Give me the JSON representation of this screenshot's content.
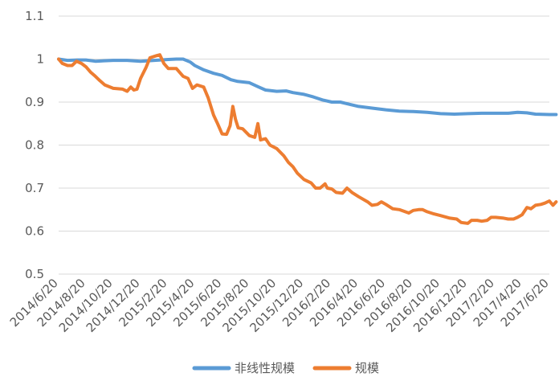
{
  "chart_data": {
    "type": "line",
    "title": "",
    "xlabel": "",
    "ylabel": "",
    "ylim": [
      0.5,
      1.1
    ],
    "yticks": [
      "0.5",
      "0.6",
      "0.7",
      "0.8",
      "0.9",
      "1",
      "1.1"
    ],
    "xticks": [
      "2014/6/20",
      "2014/8/20",
      "2014/10/20",
      "2014/12/20",
      "2015/2/20",
      "2015/4/20",
      "2015/6/20",
      "2015/8/20",
      "2015/10/20",
      "2015/12/20",
      "2016/2/20",
      "2016/4/20",
      "2016/6/20",
      "2016/8/20",
      "2016/10/20",
      "2016/12/20",
      "2017/2/20",
      "2017/4/20",
      "2017/6/20"
    ],
    "grid": true,
    "legend_position": "bottom",
    "series": [
      {
        "name": "非线性规模",
        "color": "#5B9BD5",
        "points": [
          [
            "2014/6/20",
            1.0
          ],
          [
            "2014/7/10",
            0.997
          ],
          [
            "2014/8/1",
            0.998
          ],
          [
            "2014/8/20",
            0.998
          ],
          [
            "2014/9/10",
            0.995
          ],
          [
            "2014/10/20",
            0.997
          ],
          [
            "2014/11/20",
            0.997
          ],
          [
            "2014/12/20",
            0.995
          ],
          [
            "2015/1/20",
            0.997
          ],
          [
            "2015/2/20",
            0.999
          ],
          [
            "2015/3/10",
            1.0
          ],
          [
            "2015/3/25",
            1.0
          ],
          [
            "2015/4/10",
            0.993
          ],
          [
            "2015/4/20",
            0.985
          ],
          [
            "2015/5/10",
            0.975
          ],
          [
            "2015/6/1",
            0.967
          ],
          [
            "2015/6/20",
            0.962
          ],
          [
            "2015/7/10",
            0.952
          ],
          [
            "2015/7/25",
            0.948
          ],
          [
            "2015/8/20",
            0.945
          ],
          [
            "2015/9/10",
            0.935
          ],
          [
            "2015/9/25",
            0.928
          ],
          [
            "2015/10/20",
            0.925
          ],
          [
            "2015/11/10",
            0.926
          ],
          [
            "2015/11/25",
            0.922
          ],
          [
            "2015/12/20",
            0.918
          ],
          [
            "2016/1/10",
            0.912
          ],
          [
            "2016/1/30",
            0.905
          ],
          [
            "2016/2/20",
            0.9
          ],
          [
            "2016/3/10",
            0.9
          ],
          [
            "2016/3/30",
            0.895
          ],
          [
            "2016/4/20",
            0.89
          ],
          [
            "2016/5/20",
            0.886
          ],
          [
            "2016/6/20",
            0.882
          ],
          [
            "2016/7/20",
            0.879
          ],
          [
            "2016/8/20",
            0.878
          ],
          [
            "2016/9/20",
            0.876
          ],
          [
            "2016/10/20",
            0.873
          ],
          [
            "2016/11/20",
            0.872
          ],
          [
            "2016/12/20",
            0.873
          ],
          [
            "2017/1/20",
            0.874
          ],
          [
            "2017/2/20",
            0.874
          ],
          [
            "2017/3/20",
            0.874
          ],
          [
            "2017/4/10",
            0.876
          ],
          [
            "2017/5/1",
            0.875
          ],
          [
            "2017/5/20",
            0.872
          ],
          [
            "2017/6/20",
            0.871
          ],
          [
            "2017/7/5",
            0.871
          ]
        ]
      },
      {
        "name": "规模",
        "color": "#ED7D31",
        "points": [
          [
            "2014/6/20",
            1.0
          ],
          [
            "2014/6/28",
            0.99
          ],
          [
            "2014/7/10",
            0.985
          ],
          [
            "2014/7/20",
            0.985
          ],
          [
            "2014/7/30",
            0.995
          ],
          [
            "2014/8/10",
            0.99
          ],
          [
            "2014/8/20",
            0.982
          ],
          [
            "2014/8/30",
            0.97
          ],
          [
            "2014/9/10",
            0.96
          ],
          [
            "2014/9/20",
            0.95
          ],
          [
            "2014/10/1",
            0.94
          ],
          [
            "2014/10/20",
            0.932
          ],
          [
            "2014/11/10",
            0.93
          ],
          [
            "2014/11/20",
            0.925
          ],
          [
            "2014/11/28",
            0.935
          ],
          [
            "2014/12/5",
            0.928
          ],
          [
            "2014/12/12",
            0.93
          ],
          [
            "2014/12/20",
            0.955
          ],
          [
            "2015/1/1",
            0.98
          ],
          [
            "2015/1/10",
            1.003
          ],
          [
            "2015/1/25",
            1.008
          ],
          [
            "2015/2/1",
            1.01
          ],
          [
            "2015/2/10",
            0.99
          ],
          [
            "2015/2/20",
            0.978
          ],
          [
            "2015/3/10",
            0.978
          ],
          [
            "2015/3/25",
            0.96
          ],
          [
            "2015/4/5",
            0.955
          ],
          [
            "2015/4/15",
            0.932
          ],
          [
            "2015/4/25",
            0.94
          ],
          [
            "2015/5/10",
            0.935
          ],
          [
            "2015/5/20",
            0.91
          ],
          [
            "2015/6/1",
            0.87
          ],
          [
            "2015/6/10",
            0.85
          ],
          [
            "2015/6/20",
            0.826
          ],
          [
            "2015/6/30",
            0.825
          ],
          [
            "2015/7/8",
            0.845
          ],
          [
            "2015/7/14",
            0.89
          ],
          [
            "2015/7/20",
            0.86
          ],
          [
            "2015/7/26",
            0.84
          ],
          [
            "2015/8/5",
            0.838
          ],
          [
            "2015/8/20",
            0.822
          ],
          [
            "2015/9/1",
            0.818
          ],
          [
            "2015/9/8",
            0.85
          ],
          [
            "2015/9/14",
            0.812
          ],
          [
            "2015/9/25",
            0.815
          ],
          [
            "2015/10/5",
            0.8
          ],
          [
            "2015/10/20",
            0.792
          ],
          [
            "2015/11/5",
            0.775
          ],
          [
            "2015/11/15",
            0.76
          ],
          [
            "2015/11/25",
            0.75
          ],
          [
            "2015/12/5",
            0.735
          ],
          [
            "2015/12/20",
            0.72
          ],
          [
            "2016/1/5",
            0.712
          ],
          [
            "2016/1/15",
            0.7
          ],
          [
            "2016/1/25",
            0.7
          ],
          [
            "2016/2/5",
            0.71
          ],
          [
            "2016/2/10",
            0.7
          ],
          [
            "2016/2/20",
            0.698
          ],
          [
            "2016/3/1",
            0.69
          ],
          [
            "2016/3/15",
            0.688
          ],
          [
            "2016/3/25",
            0.7
          ],
          [
            "2016/4/5",
            0.69
          ],
          [
            "2016/4/20",
            0.68
          ],
          [
            "2016/5/10",
            0.668
          ],
          [
            "2016/5/20",
            0.66
          ],
          [
            "2016/6/1",
            0.662
          ],
          [
            "2016/6/10",
            0.668
          ],
          [
            "2016/6/20",
            0.662
          ],
          [
            "2016/7/5",
            0.652
          ],
          [
            "2016/7/20",
            0.65
          ],
          [
            "2016/8/10",
            0.642
          ],
          [
            "2016/8/20",
            0.648
          ],
          [
            "2016/9/1",
            0.65
          ],
          [
            "2016/9/10",
            0.65
          ],
          [
            "2016/9/20",
            0.645
          ],
          [
            "2016/10/5",
            0.64
          ],
          [
            "2016/10/20",
            0.636
          ],
          [
            "2016/11/10",
            0.63
          ],
          [
            "2016/11/25",
            0.628
          ],
          [
            "2016/12/5",
            0.62
          ],
          [
            "2016/12/20",
            0.618
          ],
          [
            "2016/12/28",
            0.625
          ],
          [
            "2017/1/10",
            0.625
          ],
          [
            "2017/1/20",
            0.623
          ],
          [
            "2017/2/1",
            0.625
          ],
          [
            "2017/2/10",
            0.632
          ],
          [
            "2017/2/20",
            0.632
          ],
          [
            "2017/3/10",
            0.63
          ],
          [
            "2017/3/20",
            0.628
          ],
          [
            "2017/4/1",
            0.628
          ],
          [
            "2017/4/10",
            0.632
          ],
          [
            "2017/4/20",
            0.638
          ],
          [
            "2017/5/1",
            0.655
          ],
          [
            "2017/5/10",
            0.652
          ],
          [
            "2017/5/20",
            0.66
          ],
          [
            "2017/6/1",
            0.662
          ],
          [
            "2017/6/10",
            0.665
          ],
          [
            "2017/6/20",
            0.67
          ],
          [
            "2017/6/28",
            0.66
          ],
          [
            "2017/7/5",
            0.668
          ]
        ]
      }
    ]
  }
}
